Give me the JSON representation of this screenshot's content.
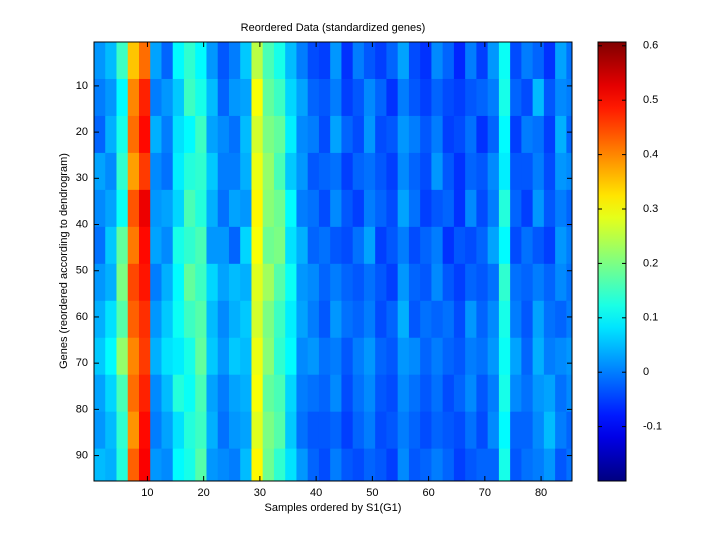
{
  "chart_data": {
    "type": "heatmap",
    "title": "Reordered Data (standardized genes)",
    "x_label": "Samples ordered by S1(G1)",
    "y_label": "Genes (reordered according to dendrogram)",
    "colormap": "jet",
    "xlim": [
      0.5,
      85.5
    ],
    "ylim": [
      0.5,
      95.5
    ],
    "y_reversed": true,
    "xticks": [
      10,
      20,
      30,
      40,
      50,
      60,
      70,
      80
    ],
    "yticks": [
      10,
      20,
      30,
      40,
      50,
      60,
      70,
      80,
      90
    ],
    "clim": [
      -0.2,
      0.607
    ],
    "cticks": [
      -0.1,
      0,
      0.1,
      0.2,
      0.3,
      0.4,
      0.5,
      0.6
    ],
    "x": [
      1.5,
      3.5,
      5.5,
      7.5,
      9.5,
      11.5,
      13.5,
      15.5,
      17.5,
      19.5,
      21.5,
      23.5,
      25.5,
      27.5,
      29.5,
      31.5,
      33.5,
      35.5,
      37.5,
      39.5,
      41.5,
      43.5,
      45.5,
      47.5,
      49.5,
      51.5,
      53.5,
      55.5,
      57.5,
      59.5,
      61.5,
      63.5,
      65.5,
      67.5,
      69.5,
      71.5,
      73.5,
      75.5,
      77.5,
      79.5,
      81.5,
      83.5,
      85.5
    ],
    "y": [
      4.5,
      12.5,
      20.5,
      28.5,
      36.5,
      44.5,
      52.5,
      60.5,
      68.5,
      76.5,
      84.5,
      92.5
    ],
    "values": [
      [
        0.02,
        0.05,
        0.15,
        0.35,
        0.42,
        0.03,
        -0.02,
        0.1,
        0.14,
        0.1,
        0.02,
        -0.03,
        0.0,
        0.06,
        0.25,
        0.16,
        0.12,
        0.05,
        0.0,
        -0.04,
        -0.05,
        0.02,
        -0.06,
        0.0,
        -0.03,
        -0.05,
        -0.02,
        0.03,
        -0.04,
        -0.06,
        0.01,
        -0.02,
        -0.07,
        0.0,
        -0.05,
        0.02,
        0.11,
        -0.04,
        0.0,
        -0.02,
        -0.06,
        0.03,
        -0.01
      ],
      [
        0.0,
        0.02,
        0.1,
        0.4,
        0.48,
        0.0,
        0.02,
        0.06,
        0.15,
        0.12,
        0.05,
        -0.02,
        0.02,
        0.03,
        0.3,
        0.18,
        0.15,
        0.07,
        0.03,
        -0.02,
        -0.03,
        0.0,
        -0.05,
        -0.03,
        0.01,
        -0.02,
        -0.06,
        0.0,
        -0.03,
        -0.05,
        -0.02,
        -0.04,
        -0.05,
        -0.03,
        -0.02,
        0.0,
        0.12,
        -0.02,
        -0.04,
        0.05,
        -0.03,
        0.01,
        0.0
      ],
      [
        -0.02,
        0.04,
        0.12,
        0.42,
        0.5,
        0.04,
        0.0,
        0.08,
        0.1,
        0.15,
        0.03,
        0.01,
        -0.01,
        0.05,
        0.27,
        0.2,
        0.18,
        0.09,
        0.01,
        0.0,
        -0.04,
        0.03,
        -0.02,
        -0.04,
        0.02,
        -0.04,
        -0.03,
        0.02,
        0.0,
        -0.03,
        0.0,
        -0.05,
        -0.04,
        -0.01,
        -0.06,
        -0.02,
        0.1,
        -0.05,
        0.0,
        -0.01,
        -0.05,
        0.04,
        -0.02
      ],
      [
        0.03,
        0.01,
        0.14,
        0.38,
        0.46,
        0.01,
        -0.01,
        0.09,
        0.13,
        0.14,
        0.06,
        0.0,
        0.0,
        0.04,
        0.29,
        0.22,
        0.16,
        0.06,
        0.02,
        -0.03,
        -0.02,
        -0.01,
        -0.05,
        -0.02,
        -0.01,
        -0.03,
        -0.05,
        0.01,
        -0.02,
        -0.04,
        0.02,
        -0.03,
        -0.06,
        -0.02,
        -0.03,
        0.01,
        0.09,
        -0.03,
        -0.03,
        0.0,
        -0.04,
        0.02,
        0.01
      ],
      [
        0.01,
        0.03,
        0.11,
        0.44,
        0.52,
        0.02,
        0.03,
        0.07,
        0.16,
        0.13,
        0.04,
        -0.01,
        0.03,
        0.02,
        0.31,
        0.21,
        0.19,
        0.1,
        0.0,
        -0.01,
        -0.04,
        0.01,
        -0.03,
        -0.05,
        0.0,
        -0.02,
        -0.04,
        0.03,
        -0.01,
        -0.05,
        -0.03,
        -0.02,
        -0.06,
        0.01,
        -0.04,
        0.0,
        0.13,
        -0.02,
        -0.05,
        0.02,
        -0.03,
        0.0,
        -0.02
      ],
      [
        -0.01,
        0.06,
        0.18,
        0.41,
        0.5,
        0.03,
        0.01,
        0.12,
        0.14,
        0.16,
        0.02,
        0.02,
        -0.02,
        0.07,
        0.3,
        0.19,
        0.2,
        0.08,
        0.04,
        -0.02,
        -0.01,
        -0.03,
        -0.04,
        -0.01,
        0.03,
        -0.05,
        -0.03,
        0.0,
        -0.04,
        -0.02,
        0.0,
        -0.06,
        -0.03,
        -0.04,
        -0.02,
        0.03,
        0.1,
        -0.04,
        -0.01,
        -0.03,
        -0.05,
        0.02,
        0.0
      ],
      [
        0.02,
        0.04,
        0.2,
        0.45,
        0.49,
        0.0,
        0.04,
        0.1,
        0.18,
        0.15,
        0.07,
        0.03,
        0.05,
        0.04,
        0.28,
        0.23,
        0.17,
        0.11,
        0.02,
        0.01,
        -0.02,
        0.0,
        -0.02,
        -0.03,
        -0.01,
        -0.03,
        -0.05,
        0.02,
        -0.02,
        -0.03,
        0.01,
        -0.03,
        -0.05,
        -0.02,
        -0.03,
        -0.01,
        0.14,
        -0.01,
        -0.02,
        0.0,
        -0.02,
        0.01,
        -0.01
      ],
      [
        0.04,
        0.08,
        0.17,
        0.43,
        0.47,
        0.02,
        0.06,
        0.11,
        0.15,
        0.17,
        0.05,
        0.01,
        0.04,
        0.06,
        0.27,
        0.2,
        0.15,
        0.09,
        0.03,
        0.0,
        -0.03,
        0.02,
        -0.01,
        -0.02,
        0.0,
        -0.04,
        -0.02,
        0.04,
        -0.03,
        -0.01,
        -0.02,
        -0.01,
        -0.04,
        0.02,
        -0.02,
        0.01,
        0.12,
        0.0,
        -0.03,
        0.03,
        -0.01,
        -0.02,
        0.0
      ],
      [
        0.06,
        0.1,
        0.22,
        0.4,
        0.46,
        0.04,
        0.08,
        0.09,
        0.12,
        0.18,
        0.06,
        0.02,
        0.06,
        0.05,
        0.29,
        0.21,
        0.14,
        0.1,
        0.01,
        0.02,
        -0.01,
        0.0,
        -0.03,
        0.0,
        0.02,
        -0.02,
        -0.03,
        0.02,
        0.01,
        -0.02,
        0.0,
        -0.02,
        -0.03,
        0.0,
        -0.01,
        0.02,
        0.11,
        0.03,
        -0.02,
        0.04,
        0.0,
        0.01,
        0.02
      ],
      [
        0.03,
        0.07,
        0.16,
        0.42,
        0.48,
        0.01,
        0.05,
        0.13,
        0.11,
        0.16,
        0.03,
        0.0,
        0.03,
        0.04,
        0.3,
        0.18,
        0.16,
        0.07,
        0.0,
        -0.01,
        -0.02,
        0.01,
        -0.04,
        -0.01,
        0.01,
        -0.03,
        -0.04,
        0.01,
        -0.01,
        -0.03,
        -0.01,
        -0.04,
        -0.02,
        0.01,
        -0.03,
        0.0,
        0.12,
        0.01,
        -0.01,
        0.02,
        0.03,
        -0.01,
        0.01
      ],
      [
        0.02,
        0.05,
        0.14,
        0.39,
        0.5,
        0.0,
        0.03,
        0.08,
        0.13,
        0.15,
        0.04,
        -0.01,
        0.02,
        0.03,
        0.28,
        0.2,
        0.17,
        0.06,
        -0.01,
        -0.03,
        -0.03,
        -0.02,
        -0.05,
        -0.02,
        0.0,
        -0.04,
        -0.03,
        0.0,
        -0.02,
        -0.04,
        -0.02,
        -0.03,
        -0.04,
        -0.01,
        -0.04,
        0.01,
        0.1,
        -0.02,
        -0.02,
        0.01,
        0.05,
        0.0,
        -0.02
      ],
      [
        0.05,
        0.04,
        0.13,
        0.43,
        0.51,
        0.02,
        0.01,
        0.1,
        0.12,
        0.17,
        0.02,
        0.01,
        0.0,
        0.05,
        0.31,
        0.19,
        0.14,
        0.08,
        0.02,
        -0.02,
        -0.04,
        0.0,
        -0.03,
        -0.04,
        -0.02,
        -0.03,
        -0.05,
        0.01,
        -0.03,
        -0.02,
        0.0,
        -0.02,
        -0.05,
        -0.03,
        -0.02,
        -0.02,
        0.12,
        -0.03,
        -0.01,
        0.0,
        0.02,
        -0.03,
        -0.01
      ]
    ]
  }
}
